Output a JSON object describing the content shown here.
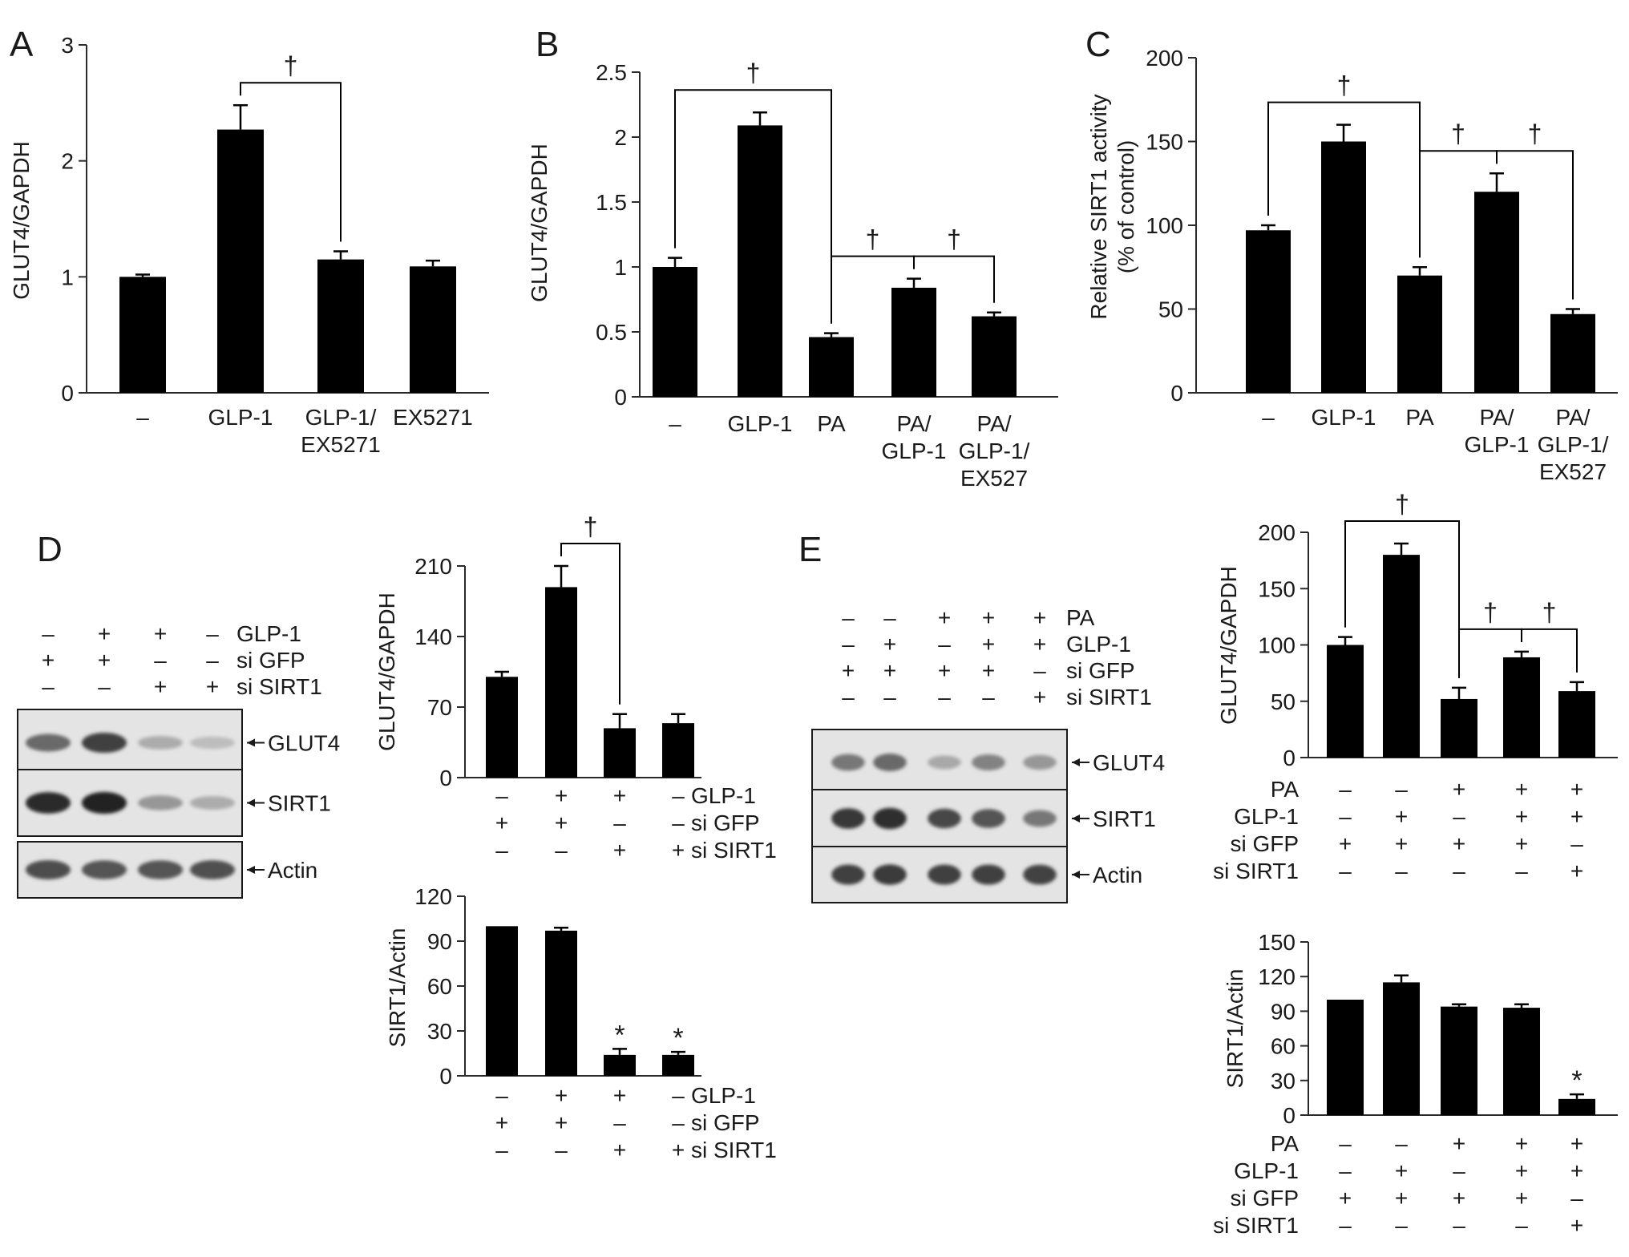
{
  "panel_letters": [
    "A",
    "B",
    "C",
    "D",
    "E"
  ],
  "markers": {
    "dagger": "†",
    "star": "*"
  },
  "colors": {
    "bar": "#000000",
    "axis": "#2a2a2a",
    "text": "#1a1a1a"
  },
  "chart_data": [
    {
      "id": "A",
      "type": "bar",
      "panel": "A",
      "ylabel": "GLUT4/GAPDH",
      "ylim": [
        0,
        3
      ],
      "yticks": [
        "0",
        "1",
        "2",
        "3"
      ],
      "categories": [
        [
          "–"
        ],
        [
          "GLP-1"
        ],
        [
          "GLP-1/",
          "EX5271"
        ],
        [
          "EX5271"
        ]
      ],
      "values": [
        1.0,
        2.27,
        1.15,
        1.09
      ],
      "errors": [
        0.02,
        0.21,
        0.07,
        0.05
      ],
      "brackets": [
        {
          "from": 1,
          "to": 2,
          "label": "†"
        }
      ],
      "point_labels": []
    },
    {
      "id": "B",
      "type": "bar",
      "panel": "B",
      "ylabel": "GLUT4/GAPDH",
      "ylim": [
        0,
        2.5
      ],
      "yticks": [
        "0",
        "0.5",
        "1",
        "1.5",
        "2",
        "2.5"
      ],
      "categories": [
        [
          "–"
        ],
        [
          "GLP-1"
        ],
        [
          "PA"
        ],
        [
          "PA/",
          "GLP-1"
        ],
        [
          "PA/",
          "GLP-1/",
          "EX527"
        ]
      ],
      "values": [
        1.0,
        2.09,
        0.46,
        0.84,
        0.62
      ],
      "errors": [
        0.07,
        0.1,
        0.03,
        0.07,
        0.03
      ],
      "brackets": [
        {
          "from": 0,
          "to": 2,
          "label": "†"
        },
        {
          "from": 2,
          "to": 3,
          "label": "†"
        },
        {
          "from": 3,
          "to": 4,
          "label": "†"
        }
      ],
      "point_labels": []
    },
    {
      "id": "C",
      "type": "bar",
      "panel": "C",
      "ylabel": [
        "Relative SIRT1 activity",
        "(% of control)"
      ],
      "ylim": [
        0,
        200
      ],
      "yticks": [
        "0",
        "50",
        "100",
        "150",
        "200"
      ],
      "categories": [
        [
          "–"
        ],
        [
          "GLP-1"
        ],
        [
          "PA"
        ],
        [
          "PA/",
          "GLP-1"
        ],
        [
          "PA/",
          "GLP-1/",
          "EX527"
        ]
      ],
      "values": [
        97,
        150,
        70,
        120,
        47
      ],
      "errors": [
        3,
        10,
        5,
        11,
        3
      ],
      "brackets": [
        {
          "from": 0,
          "to": 2,
          "label": "†"
        },
        {
          "from": 2,
          "to": 3,
          "label": "†"
        },
        {
          "from": 3,
          "to": 4,
          "label": "†"
        }
      ],
      "point_labels": []
    },
    {
      "id": "D_glut4",
      "type": "bar",
      "panel": "D",
      "ylabel": "GLUT4/GAPDH",
      "ylim": [
        0,
        210
      ],
      "yticks": [
        "0",
        "70",
        "140",
        "210"
      ],
      "values": [
        100,
        189,
        49,
        54
      ],
      "errors": [
        5,
        21,
        14,
        9
      ],
      "brackets": [
        {
          "from": 1,
          "to": 2,
          "label": "†"
        }
      ],
      "point_labels": [],
      "conditions": [
        {
          "name": "GLP-1",
          "signs": [
            "–",
            "+",
            "+",
            "–"
          ]
        },
        {
          "name": "si GFP",
          "signs": [
            "+",
            "+",
            "–",
            "–"
          ]
        },
        {
          "name": "si SIRT1",
          "signs": [
            "–",
            "–",
            "+",
            "+"
          ]
        }
      ]
    },
    {
      "id": "D_sirt1",
      "type": "bar",
      "panel": "D",
      "ylabel": "SIRT1/Actin",
      "ylim": [
        0,
        120
      ],
      "yticks": [
        "0",
        "30",
        "60",
        "90",
        "120"
      ],
      "values": [
        100,
        97,
        14,
        14
      ],
      "errors": [
        0,
        2,
        4,
        2
      ],
      "brackets": [],
      "point_labels": [
        "",
        "",
        "*",
        "*"
      ],
      "conditions": [
        {
          "name": "GLP-1",
          "signs": [
            "–",
            "+",
            "+",
            "–"
          ]
        },
        {
          "name": "si GFP",
          "signs": [
            "+",
            "+",
            "–",
            "–"
          ]
        },
        {
          "name": "si SIRT1",
          "signs": [
            "–",
            "–",
            "+",
            "+"
          ]
        }
      ]
    },
    {
      "id": "E_glut4",
      "type": "bar",
      "panel": "E",
      "ylabel": "GLUT4/GAPDH",
      "ylim": [
        0,
        200
      ],
      "yticks": [
        "0",
        "50",
        "100",
        "150",
        "200"
      ],
      "values": [
        100,
        180,
        52,
        89,
        59
      ],
      "errors": [
        7,
        10,
        10,
        5,
        8
      ],
      "brackets": [
        {
          "from": 0,
          "to": 2,
          "label": "†"
        },
        {
          "from": 2,
          "to": 3,
          "label": "†"
        },
        {
          "from": 3,
          "to": 4,
          "label": "†"
        }
      ],
      "point_labels": [],
      "conditions": [
        {
          "name": "PA",
          "signs": [
            "–",
            "–",
            "+",
            "+",
            "+"
          ]
        },
        {
          "name": "GLP-1",
          "signs": [
            "–",
            "+",
            "–",
            "+",
            "+"
          ]
        },
        {
          "name": "si GFP",
          "signs": [
            "+",
            "+",
            "+",
            "+",
            "–"
          ]
        },
        {
          "name": "si SIRT1",
          "signs": [
            "–",
            "–",
            "–",
            "–",
            "+"
          ]
        }
      ]
    },
    {
      "id": "E_sirt1",
      "type": "bar",
      "panel": "E",
      "ylabel": "SIRT1/Actin",
      "ylim": [
        0,
        150
      ],
      "yticks": [
        "0",
        "30",
        "60",
        "90",
        "120",
        "150"
      ],
      "values": [
        100,
        115,
        94,
        93,
        14
      ],
      "errors": [
        0,
        6,
        2,
        3,
        4
      ],
      "brackets": [],
      "point_labels": [
        "",
        "",
        "",
        "",
        "*"
      ],
      "conditions": [
        {
          "name": "PA",
          "signs": [
            "–",
            "–",
            "+",
            "+",
            "+"
          ]
        },
        {
          "name": "GLP-1",
          "signs": [
            "–",
            "+",
            "–",
            "+",
            "+"
          ]
        },
        {
          "name": "si GFP",
          "signs": [
            "+",
            "+",
            "+",
            "+",
            "–"
          ]
        },
        {
          "name": "si SIRT1",
          "signs": [
            "–",
            "–",
            "–",
            "–",
            "+"
          ]
        }
      ]
    }
  ],
  "blots": [
    {
      "id": "D_blot",
      "panel": "D",
      "conditions": [
        {
          "name": "GLP-1",
          "signs": [
            "–",
            "+",
            "+",
            "–"
          ]
        },
        {
          "name": "si GFP",
          "signs": [
            "+",
            "+",
            "–",
            "–"
          ]
        },
        {
          "name": "si SIRT1",
          "signs": [
            "–",
            "–",
            "+",
            "+"
          ]
        }
      ],
      "bands": [
        {
          "label": "GLUT4",
          "intensities": [
            0.62,
            0.82,
            0.3,
            0.22
          ]
        },
        {
          "label": "SIRT1",
          "intensities": [
            0.92,
            0.95,
            0.4,
            0.3
          ]
        },
        {
          "label": "Actin",
          "intensities": [
            0.75,
            0.72,
            0.72,
            0.74
          ]
        }
      ]
    },
    {
      "id": "E_blot",
      "panel": "E",
      "conditions": [
        {
          "name": "PA",
          "signs": [
            "–",
            "–",
            "+",
            "+",
            "+"
          ]
        },
        {
          "name": "GLP-1",
          "signs": [
            "–",
            "+",
            "–",
            "+",
            "+"
          ]
        },
        {
          "name": "si GFP",
          "signs": [
            "+",
            "+",
            "+",
            "+",
            "–"
          ]
        },
        {
          "name": "si SIRT1",
          "signs": [
            "–",
            "–",
            "–",
            "–",
            "+"
          ]
        }
      ],
      "bands": [
        {
          "label": "GLUT4",
          "intensities": [
            0.55,
            0.62,
            0.32,
            0.5,
            0.4
          ]
        },
        {
          "label": "SIRT1",
          "intensities": [
            0.85,
            0.9,
            0.78,
            0.72,
            0.55
          ]
        },
        {
          "label": "Actin",
          "intensities": [
            0.82,
            0.84,
            0.82,
            0.82,
            0.8
          ]
        }
      ]
    }
  ]
}
